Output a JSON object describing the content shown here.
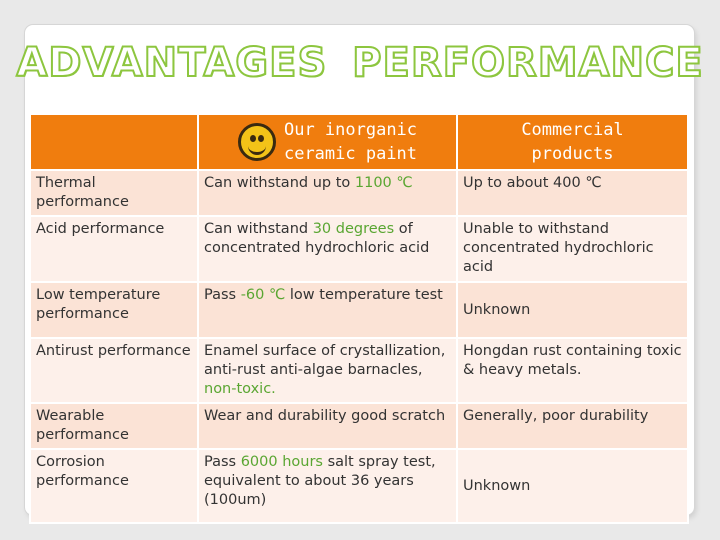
{
  "title": "ADVANTAGES PERFORMANCE",
  "header": {
    "col1": "",
    "col2_line1": "Our inorganic",
    "col2_line2": "ceramic paint",
    "col3_line1": "Commercial",
    "col3_line2": "products"
  },
  "rows": [
    {
      "label": "Thermal performance",
      "ours_pre": "Can withstand up to ",
      "ours_hl": "1100 ℃",
      "ours_post": "",
      "commercial": "Up to about 400 ℃"
    },
    {
      "label": "Acid performance",
      "ours_pre": "Can withstand ",
      "ours_hl": "30 degrees",
      "ours_post": " of concentrated hydrochloric acid",
      "commercial": "Unable to withstand concentrated hydrochloric acid"
    },
    {
      "label": "Low temperature performance",
      "ours_pre": "Pass ",
      "ours_hl": "-60 ℃",
      "ours_post": " low temperature test",
      "commercial": "Unknown"
    },
    {
      "label": "Antirust performance",
      "ours_pre": "Enamel surface of crystallization, anti-rust anti-algae barnacles, ",
      "ours_hl": "non-toxic.",
      "ours_post": "",
      "commercial": "Hongdan rust containing toxic & heavy metals."
    },
    {
      "label": "Wearable performance",
      "ours_pre": "Wear and durability good scratch",
      "ours_hl": "",
      "ours_post": "",
      "commercial": "Generally, poor durability"
    },
    {
      "label": "Corrosion performance",
      "ours_pre": "Pass ",
      "ours_hl": "6000 hours",
      "ours_post": " salt spray test, equivalent to about 36 years (100um)",
      "commercial": "Unknown"
    }
  ],
  "colors": {
    "header_bg": "#f07d0e",
    "row_odd": "#fbe3d6",
    "row_even": "#fdf0ea",
    "highlight": "#5aa632",
    "title_outline": "#8dc63f"
  },
  "icons": {
    "header_smiley": "smiley-face-icon"
  }
}
